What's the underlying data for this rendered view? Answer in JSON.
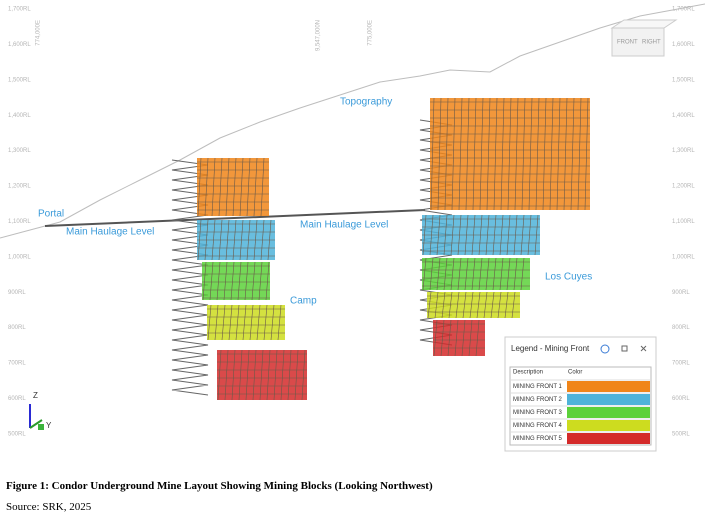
{
  "figure": {
    "elevation_labels": [
      "1,700RL",
      "1,600RL",
      "1,500RL",
      "1,400RL",
      "1,300RL",
      "1,200RL",
      "1,100RL",
      "1,000RL",
      "900RL",
      "800RL",
      "700RL",
      "600RL",
      "500RL"
    ],
    "grid_labels": [
      "774,000E",
      "9,547,000N",
      "775,000E"
    ],
    "annotations": {
      "topography": "Topography",
      "portal": "Portal",
      "haulage_left": "Main Haulage Level",
      "haulage_right": "Main Haulage Level",
      "camp": "Camp",
      "los_cuyes": "Los Cuyes"
    },
    "view_cube": [
      "FRONT",
      "RIGHT"
    ],
    "axes": [
      "Z",
      "Y"
    ],
    "legend": {
      "title": "Legend - Mining Front",
      "headers": [
        "Description",
        "Color"
      ],
      "rows": [
        {
          "label": "MINING FRONT 1",
          "color": "#f08519"
        },
        {
          "label": "MINING FRONT 2",
          "color": "#4fb3d9"
        },
        {
          "label": "MINING FRONT 3",
          "color": "#5cd13a"
        },
        {
          "label": "MINING FRONT 4",
          "color": "#cddc1f"
        },
        {
          "label": "MINING FRONT 5",
          "color": "#d42a2a"
        }
      ]
    },
    "caption": "Figure 1: Condor Underground Mine Layout Showing Mining Blocks (Looking Northwest)",
    "source": "Source: SRK, 2025"
  }
}
